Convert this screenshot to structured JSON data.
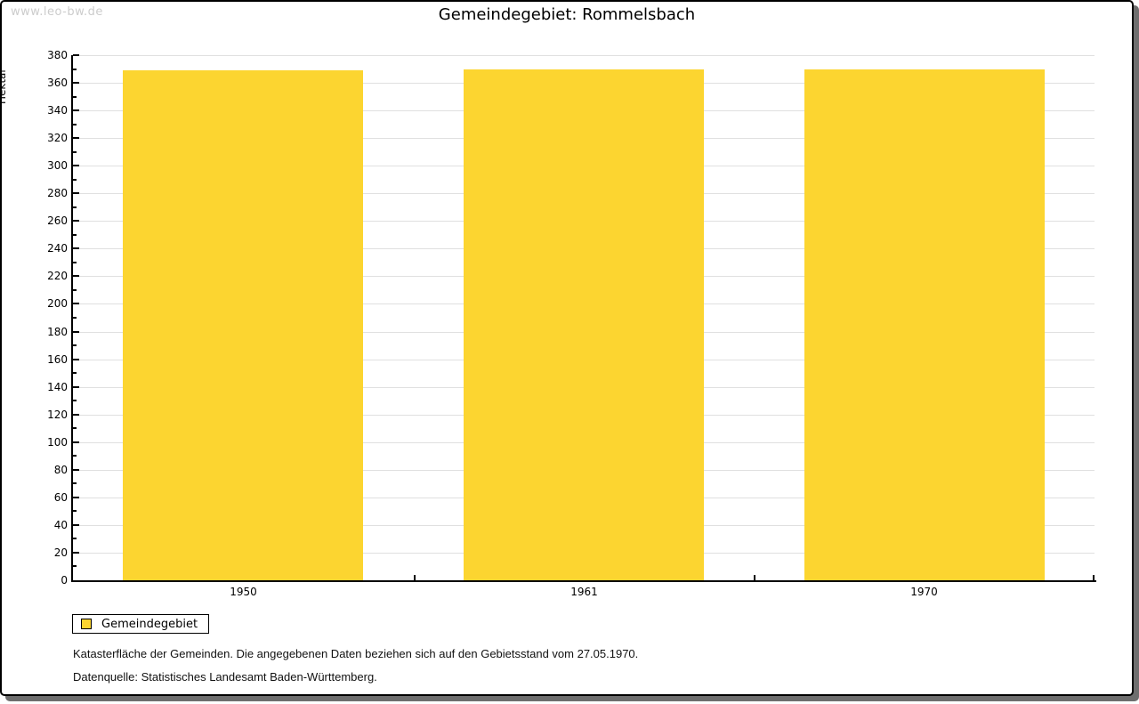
{
  "watermark": "www.leo-bw.de",
  "title": "Gemeindegebiet: Rommelsbach",
  "legend": {
    "label": "Gemeindegebiet",
    "swatch_color": "#fcd530"
  },
  "footer": {
    "line1": "Katasterfläche der Gemeinden. Die angegebenen Daten beziehen sich auf den Gebietsstand vom 27.05.1970.",
    "line2": "Datenquelle: Statistisches Landesamt Baden-Württemberg."
  },
  "chart_data": {
    "type": "bar",
    "categories": [
      "1950",
      "1961",
      "1970"
    ],
    "series": [
      {
        "name": "Gemeindegebiet",
        "values": [
          369,
          370,
          370
        ]
      }
    ],
    "title": "Gemeindegebiet: Rommelsbach",
    "xlabel": "",
    "ylabel": "Hektar",
    "ylim": [
      0,
      380
    ],
    "ytick_step": 20,
    "minor_tick_step": 10,
    "grid": true,
    "legend_position": "bottom-left",
    "bar_color": "#fcd530",
    "grid_color": "#e0e0e0"
  }
}
